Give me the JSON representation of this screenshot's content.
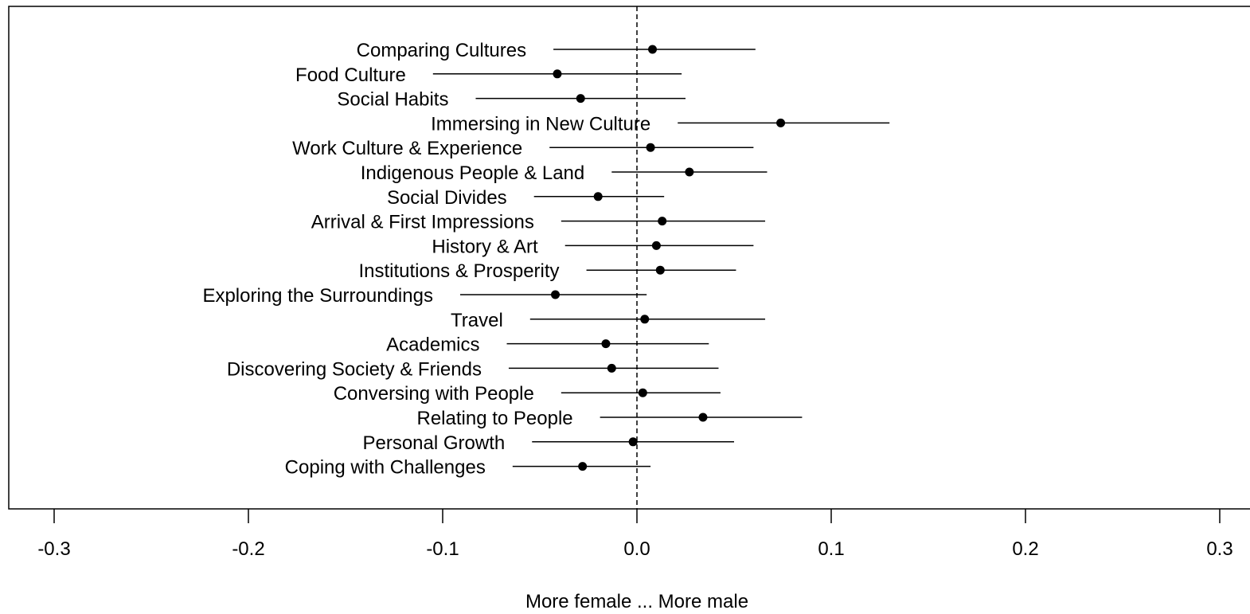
{
  "chart_data": {
    "type": "scatter",
    "subtype": "dot-and-whisker",
    "xlabel": "More female ... More male",
    "xlim": [
      -0.3,
      0.3
    ],
    "xticks": [
      "-0.3",
      "-0.2",
      "-0.1",
      "0.0",
      "0.1",
      "0.2",
      "0.3"
    ],
    "reference_line": 0.0,
    "grid": false,
    "topics": [
      {
        "label": "Comparing Cultures",
        "estimate": 0.008,
        "lower": -0.043,
        "upper": 0.061
      },
      {
        "label": "Food Culture",
        "estimate": -0.041,
        "lower": -0.105,
        "upper": 0.023
      },
      {
        "label": "Social Habits",
        "estimate": -0.029,
        "lower": -0.083,
        "upper": 0.025
      },
      {
        "label": "Immersing in New Culture",
        "estimate": 0.074,
        "lower": 0.021,
        "upper": 0.13
      },
      {
        "label": "Work Culture & Experience",
        "estimate": 0.007,
        "lower": -0.045,
        "upper": 0.06
      },
      {
        "label": "Indigenous People & Land",
        "estimate": 0.027,
        "lower": -0.013,
        "upper": 0.067
      },
      {
        "label": "Social Divides",
        "estimate": -0.02,
        "lower": -0.053,
        "upper": 0.014
      },
      {
        "label": "Arrival & First Impressions",
        "estimate": 0.013,
        "lower": -0.039,
        "upper": 0.066
      },
      {
        "label": "History & Art",
        "estimate": 0.01,
        "lower": -0.037,
        "upper": 0.06
      },
      {
        "label": "Institutions & Prosperity",
        "estimate": 0.012,
        "lower": -0.026,
        "upper": 0.051
      },
      {
        "label": "Exploring the Surroundings",
        "estimate": -0.042,
        "lower": -0.091,
        "upper": 0.005
      },
      {
        "label": "Travel",
        "estimate": 0.004,
        "lower": -0.055,
        "upper": 0.066
      },
      {
        "label": "Academics",
        "estimate": -0.016,
        "lower": -0.067,
        "upper": 0.037
      },
      {
        "label": "Discovering Society & Friends",
        "estimate": -0.013,
        "lower": -0.066,
        "upper": 0.042
      },
      {
        "label": "Conversing with People",
        "estimate": 0.003,
        "lower": -0.039,
        "upper": 0.043
      },
      {
        "label": "Relating to People",
        "estimate": 0.034,
        "lower": -0.019,
        "upper": 0.085
      },
      {
        "label": "Personal Growth",
        "estimate": -0.002,
        "lower": -0.054,
        "upper": 0.05
      },
      {
        "label": "Coping with Challenges",
        "estimate": -0.028,
        "lower": -0.064,
        "upper": 0.007
      }
    ]
  }
}
